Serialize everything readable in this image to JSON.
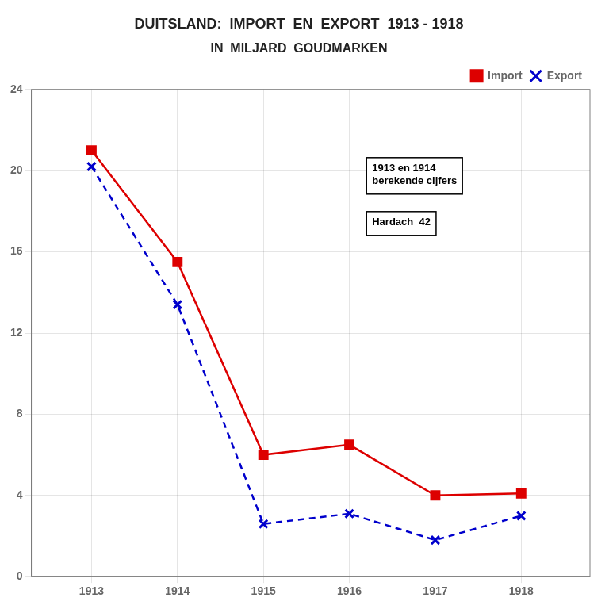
{
  "chart_data": {
    "type": "line",
    "title": "DUITSLAND:  IMPORT  EN  EXPORT  1913 - 1918",
    "subtitle": "IN  MILJARD  GOUDMARKEN",
    "x": [
      1913,
      1914,
      1915,
      1916,
      1917,
      1918
    ],
    "series": [
      {
        "name": "Import",
        "color": "#dd0000",
        "marker": "square",
        "line_style": "solid",
        "values": [
          21.0,
          15.5,
          6.0,
          6.5,
          4.0,
          4.1
        ]
      },
      {
        "name": "Export",
        "color": "#0000cc",
        "marker": "x",
        "line_style": "dashed",
        "values": [
          20.2,
          13.4,
          2.6,
          3.1,
          1.8,
          3.0
        ]
      }
    ],
    "xlim": [
      1912.3,
      1918.8
    ],
    "xticks": [
      1913,
      1914,
      1915,
      1916,
      1917,
      1918
    ],
    "ylim": [
      0,
      24
    ],
    "yticks": [
      0,
      4,
      8,
      12,
      16,
      20,
      24
    ],
    "grid": true,
    "legend": "upper right",
    "annotations": [
      "1913 en 1914\nberekende cijfers",
      "Hardach  42"
    ]
  }
}
